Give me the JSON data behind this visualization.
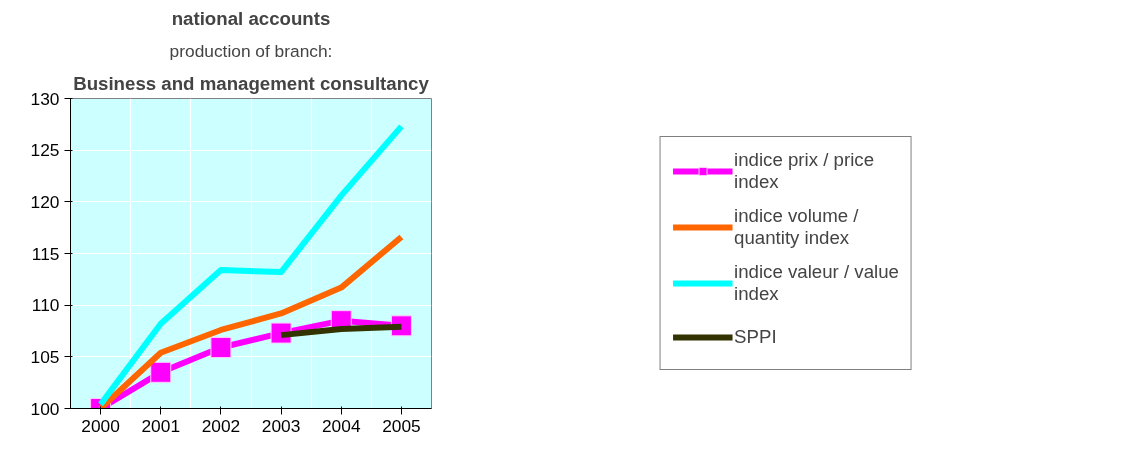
{
  "chart_data": {
    "type": "line",
    "title": "national accounts",
    "subtitle": "production of branch:",
    "annotations": [
      "Business and management consultancy"
    ],
    "categories": [
      "2000",
      "2001",
      "2002",
      "2003",
      "2004",
      "2005"
    ],
    "ylim": [
      100,
      130
    ],
    "yticks": [
      100,
      105,
      110,
      115,
      120,
      125,
      130
    ],
    "grid": true,
    "legend": "right",
    "series": [
      {
        "name": "indice prix / price index",
        "color": "#ff00ff",
        "marker": "square",
        "values": [
          100,
          103.5,
          105.9,
          107.3,
          108.5,
          108.0
        ]
      },
      {
        "name": "indice volume / quantity index",
        "color": "#ff6600",
        "values": [
          100,
          105.4,
          107.6,
          109.2,
          111.7,
          116.6
        ]
      },
      {
        "name": "indice valeur / value index",
        "color": "#00ffff",
        "values": [
          100.4,
          108.2,
          113.4,
          113.2,
          120.6,
          127.3
        ]
      },
      {
        "name": "SPPI",
        "color": "#333300",
        "values": [
          null,
          null,
          null,
          107.1,
          107.7,
          107.9
        ]
      }
    ]
  }
}
